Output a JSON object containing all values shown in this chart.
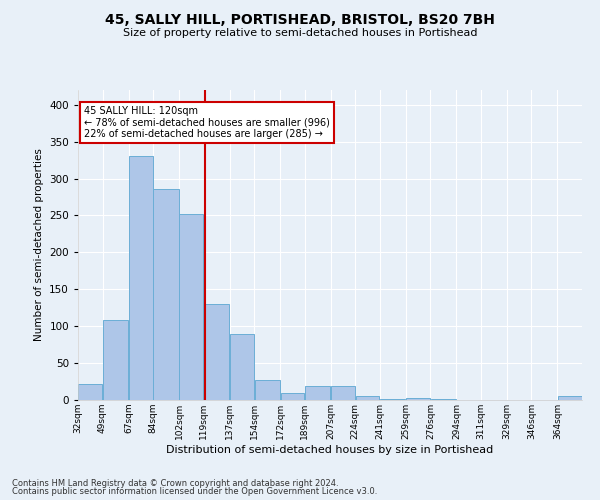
{
  "title": "45, SALLY HILL, PORTISHEAD, BRISTOL, BS20 7BH",
  "subtitle": "Size of property relative to semi-detached houses in Portishead",
  "xlabel": "Distribution of semi-detached houses by size in Portishead",
  "ylabel": "Number of semi-detached properties",
  "footer1": "Contains HM Land Registry data © Crown copyright and database right 2024.",
  "footer2": "Contains public sector information licensed under the Open Government Licence v3.0.",
  "annotation_title": "45 SALLY HILL: 120sqm",
  "annotation_line1": "← 78% of semi-detached houses are smaller (996)",
  "annotation_line2": "22% of semi-detached houses are larger (285) →",
  "subject_size": 120,
  "bar_edges": [
    32,
    49,
    67,
    84,
    102,
    119,
    137,
    154,
    172,
    189,
    207,
    224,
    241,
    259,
    276,
    294,
    311,
    329,
    346,
    364,
    381
  ],
  "bar_heights": [
    22,
    109,
    330,
    286,
    252,
    130,
    90,
    27,
    10,
    19,
    19,
    5,
    1,
    3,
    1,
    0,
    0,
    0,
    0,
    5
  ],
  "bar_color": "#aec6e8",
  "bar_edge_color": "#6baed6",
  "vline_color": "#cc0000",
  "bg_color": "#e8f0f8",
  "plot_bg_color": "#e8f0f8",
  "grid_color": "#ffffff",
  "ylim": [
    0,
    420
  ],
  "yticks": [
    0,
    50,
    100,
    150,
    200,
    250,
    300,
    350,
    400
  ]
}
